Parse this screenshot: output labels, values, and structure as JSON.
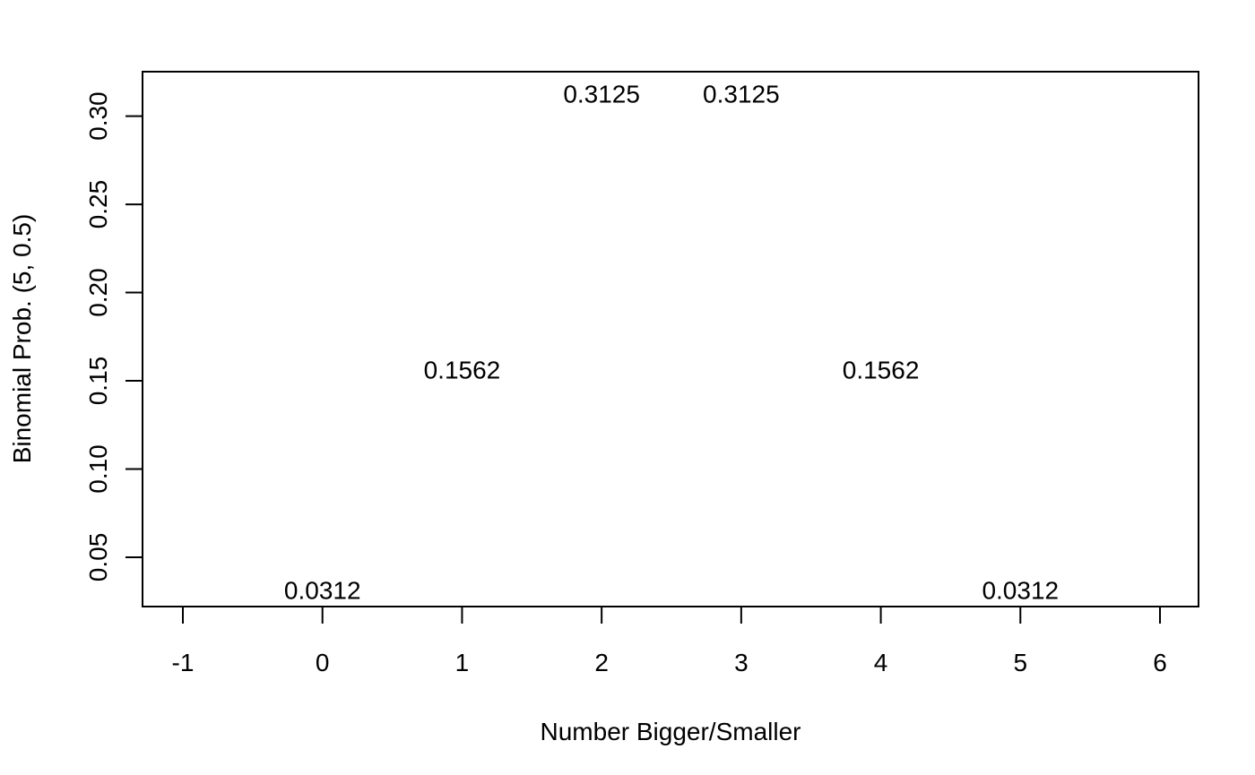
{
  "chart_data": {
    "type": "scatter",
    "title": "",
    "xlabel": "Number Bigger/Smaller",
    "ylabel": "Binomial Prob. (5, 0.5)",
    "xlim": [
      -1,
      6
    ],
    "ylim": [
      0.0312,
      0.3125
    ],
    "grid": false,
    "legend": "none",
    "x_ticks": [
      -1,
      0,
      1,
      2,
      3,
      4,
      5,
      6
    ],
    "x_tick_labels": [
      "-1",
      "0",
      "1",
      "2",
      "3",
      "4",
      "5",
      "6"
    ],
    "y_ticks": [
      0.05,
      0.1,
      0.15,
      0.2,
      0.25,
      0.3
    ],
    "y_tick_labels": [
      "0.05",
      "0.10",
      "0.15",
      "0.20",
      "0.25",
      "0.30"
    ],
    "points": [
      {
        "x": 0,
        "y": 0.0312,
        "label": "0.0312"
      },
      {
        "x": 1,
        "y": 0.1562,
        "label": "0.1562"
      },
      {
        "x": 2,
        "y": 0.3125,
        "label": "0.3125"
      },
      {
        "x": 3,
        "y": 0.3125,
        "label": "0.3125"
      },
      {
        "x": 4,
        "y": 0.1562,
        "label": "0.1562"
      },
      {
        "x": 5,
        "y": 0.0312,
        "label": "0.0312"
      }
    ],
    "colors": {
      "ink": "#000000",
      "background": "#ffffff"
    }
  }
}
